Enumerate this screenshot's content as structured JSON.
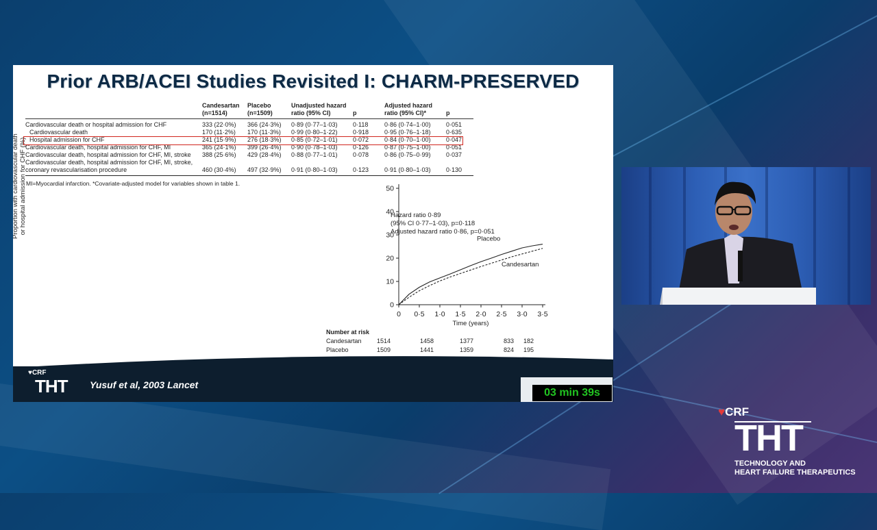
{
  "slide": {
    "title": "Prior ARB/ACEI Studies Revisited I: CHARM-PRESERVED",
    "table": {
      "headers": [
        "",
        "Candesartan\n(n=1514)",
        "Placebo\n(n=1509)",
        "Unadjusted hazard\nratio (95% CI)",
        "p",
        "Adjusted hazard\nratio (95% CI)*",
        "p"
      ],
      "rows": [
        {
          "label": "Cardiovascular death or hospital admission for CHF",
          "cand": "333 (22·0%)",
          "plac": "366 (24·3%)",
          "unadj": "0·89 (0·77–1·03)",
          "p1": "0·118",
          "adj": "0·86 (0·74–1·00)",
          "p2": "0·051"
        },
        {
          "label": "Cardiovascular death",
          "cand": "170 (11·2%)",
          "plac": "170 (11·3%)",
          "unadj": "0·99 (0·80–1·22)",
          "p1": "0·918",
          "adj": "0·95 (0·76–1·18)",
          "p2": "0·635"
        },
        {
          "label": "Hospital admission for CHF",
          "cand": "241 (15·9%)",
          "plac": "276 (18·3%)",
          "unadj": "0·85 (0·72–1·01)",
          "p1": "0·072",
          "adj": "0·84 (0·70–1·00)",
          "p2": "0·047"
        },
        {
          "label": "Cardiovascular death, hospital admission for CHF, MI",
          "cand": "365 (24·1%)",
          "plac": "399 (26·4%)",
          "unadj": "0·90 (0·78–1·03)",
          "p1": "0·126",
          "adj": "0·87 (0·75–1·00)",
          "p2": "0·051"
        },
        {
          "label": "Cardiovascular death, hospital admission for CHF, MI, stroke",
          "cand": "388 (25·6%)",
          "plac": "429 (28·4%)",
          "unadj": "0·88 (0·77–1·01)",
          "p1": "0·078",
          "adj": "0·86 (0·75–0·99)",
          "p2": "0·037"
        },
        {
          "label": "Cardiovascular death, hospital admission for CHF, MI, stroke,",
          "label2": "coronary revascularisation procedure",
          "cand": "460 (30·4%)",
          "plac": "497 (32·9%)",
          "unadj": "0·91 (0·80–1·03)",
          "p1": "0·123",
          "adj": "0·91 (0·80–1·03)",
          "p2": "0·130"
        }
      ],
      "highlight_color": "#d0241c"
    },
    "footnote": "MI=Myocardial infarction. *Covariate-adjusted model for variables shown in table 1.",
    "citation": "Yusuf et al, 2003 Lancet",
    "footer_logo_small": "CRF",
    "footer_logo_big": "THT"
  },
  "chart_data": {
    "type": "line",
    "ylabel": "Proportion with cardiovascular death\nor hospital admission for CHF (%)",
    "xlabel": "Time (years)",
    "x_ticks": [
      "0",
      "0·5",
      "1·0",
      "1·5",
      "2·0",
      "2·5",
      "3·0",
      "3·5"
    ],
    "y_ticks": [
      "0",
      "10",
      "20",
      "30",
      "40",
      "50"
    ],
    "xlim": [
      0,
      3.5
    ],
    "ylim": [
      0,
      50
    ],
    "annotation": [
      "Hazard ratio 0·89",
      "(95% CI 0·77–1·03), p=0·118",
      "Adjusted hazard ratio 0·86, p=0·051"
    ],
    "series": [
      {
        "name": "Placebo",
        "style": "solid",
        "x": [
          0,
          0.25,
          0.5,
          0.75,
          1.0,
          1.25,
          1.5,
          1.75,
          2.0,
          2.25,
          2.5,
          2.75,
          3.0,
          3.25,
          3.5
        ],
        "y": [
          0,
          4.5,
          7.5,
          9.8,
          11.5,
          13.2,
          15.0,
          16.8,
          18.5,
          20.0,
          21.6,
          23.0,
          24.4,
          25.3,
          26.0
        ]
      },
      {
        "name": "Candesartan",
        "style": "dashed",
        "x": [
          0,
          0.25,
          0.5,
          0.75,
          1.0,
          1.25,
          1.5,
          1.75,
          2.0,
          2.25,
          2.5,
          2.75,
          3.0,
          3.25,
          3.5
        ],
        "y": [
          0,
          3.2,
          6.0,
          8.2,
          10.2,
          11.9,
          13.4,
          14.9,
          16.4,
          17.8,
          19.2,
          20.6,
          21.8,
          23.0,
          24.2
        ]
      }
    ],
    "number_at_risk": {
      "label": "Number at risk",
      "rows": [
        {
          "name": "Candesartan",
          "values": [
            "1514",
            "1458",
            "1377",
            "833",
            "182"
          ]
        },
        {
          "name": "Placebo",
          "values": [
            "1509",
            "1441",
            "1359",
            "824",
            "195"
          ]
        }
      ]
    }
  },
  "timer": {
    "text": "03 min 39s",
    "color": "#21c521"
  },
  "brand": {
    "crf": "CRF",
    "tht": "THT",
    "subtitle_line1": "TECHNOLOGY AND",
    "subtitle_line2": "HEART FAILURE THERAPEUTICS"
  }
}
